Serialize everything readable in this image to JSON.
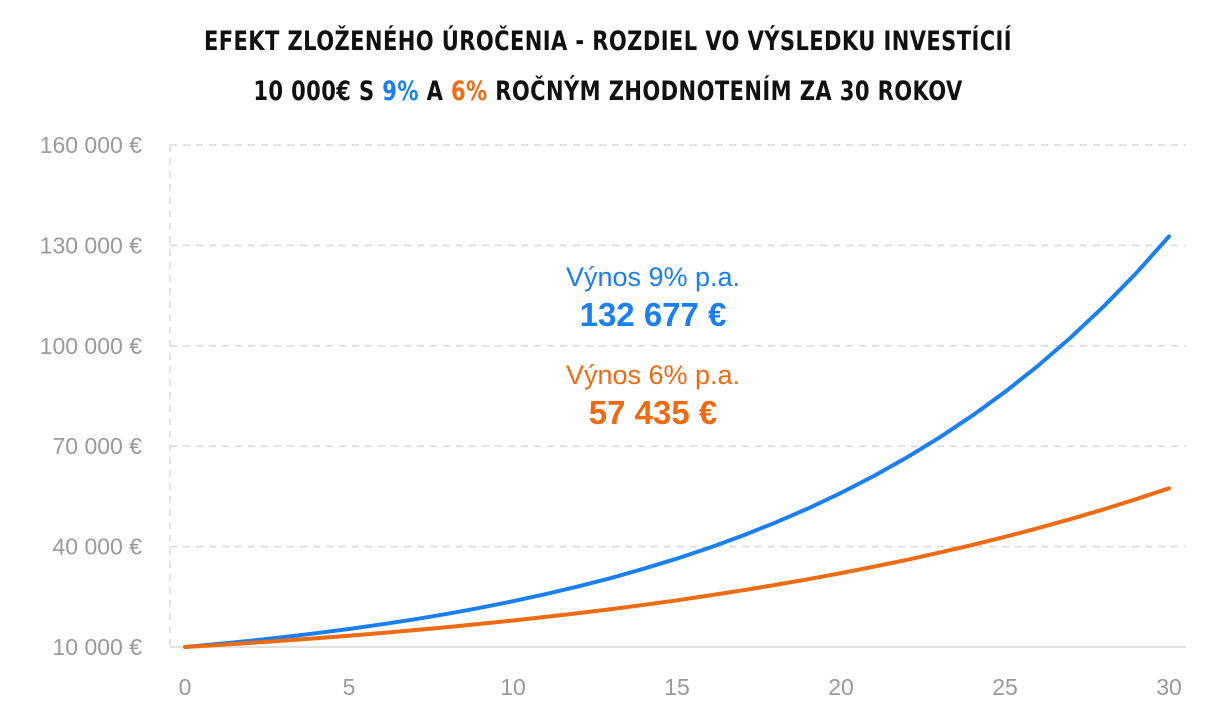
{
  "title": {
    "line1": "EFEKT ZLOŽENÉHO ÚROČENIA - ROZDIEL VO VÝSLEDKU INVESTÍCIÍ",
    "line2_a": "10 000€ S ",
    "line2_b": "9%",
    "line2_c": " A ",
    "line2_d": "6%",
    "line2_e": " ROČNÝM ZHODNOTENÍM ZA 30 ROKOV"
  },
  "colors": {
    "blue": "#1a7ff0",
    "orange": "#ee6a13",
    "grid": "#d9d9d9",
    "tick": "#9a9a9a"
  },
  "annotations": [
    {
      "label": "Výnos 9% p.a.",
      "value": "132 677 €",
      "color": "#1a7ff0"
    },
    {
      "label": "Výnos 6% p.a.",
      "value": "57 435 €",
      "color": "#ee6a13"
    }
  ],
  "chart_data": {
    "type": "line",
    "ylim": [
      10000,
      160000
    ],
    "xlim": [
      0,
      30
    ],
    "yticks": [
      10000,
      40000,
      70000,
      100000,
      130000,
      160000
    ],
    "ytick_labels": [
      "10 000 €",
      "40 000 €",
      "70 000 €",
      "100 000 €",
      "130 000 €",
      "160 000 €"
    ],
    "xticks": [
      0,
      5,
      10,
      15,
      20,
      25,
      30
    ],
    "xtick_labels": [
      "0",
      "5",
      "10",
      "15",
      "20",
      "25",
      "30"
    ],
    "grid": true,
    "x": [
      0,
      1,
      2,
      3,
      4,
      5,
      6,
      7,
      8,
      9,
      10,
      11,
      12,
      13,
      14,
      15,
      16,
      17,
      18,
      19,
      20,
      21,
      22,
      23,
      24,
      25,
      26,
      27,
      28,
      29,
      30
    ],
    "series": [
      {
        "color": "#1a7ff0",
        "values": [
          10000,
          10900,
          11881,
          12950,
          14116,
          15386,
          16771,
          18280,
          19926,
          21719,
          23674,
          25804,
          28127,
          30658,
          33417,
          36425,
          39703,
          43276,
          47171,
          51417,
          56044,
          61088,
          66586,
          72579,
          79111,
          86231,
          93992,
          102451,
          111671,
          121722,
          132677
        ]
      },
      {
        "color": "#ee6a13",
        "values": [
          10000,
          10600,
          11236,
          11910,
          12625,
          13382,
          14185,
          15036,
          15938,
          16895,
          17908,
          18983,
          20122,
          21329,
          22609,
          23966,
          25404,
          26928,
          28543,
          30256,
          32071,
          33996,
          36035,
          38197,
          40489,
          42919,
          45494,
          48223,
          51117,
          54184,
          57435
        ]
      }
    ]
  }
}
